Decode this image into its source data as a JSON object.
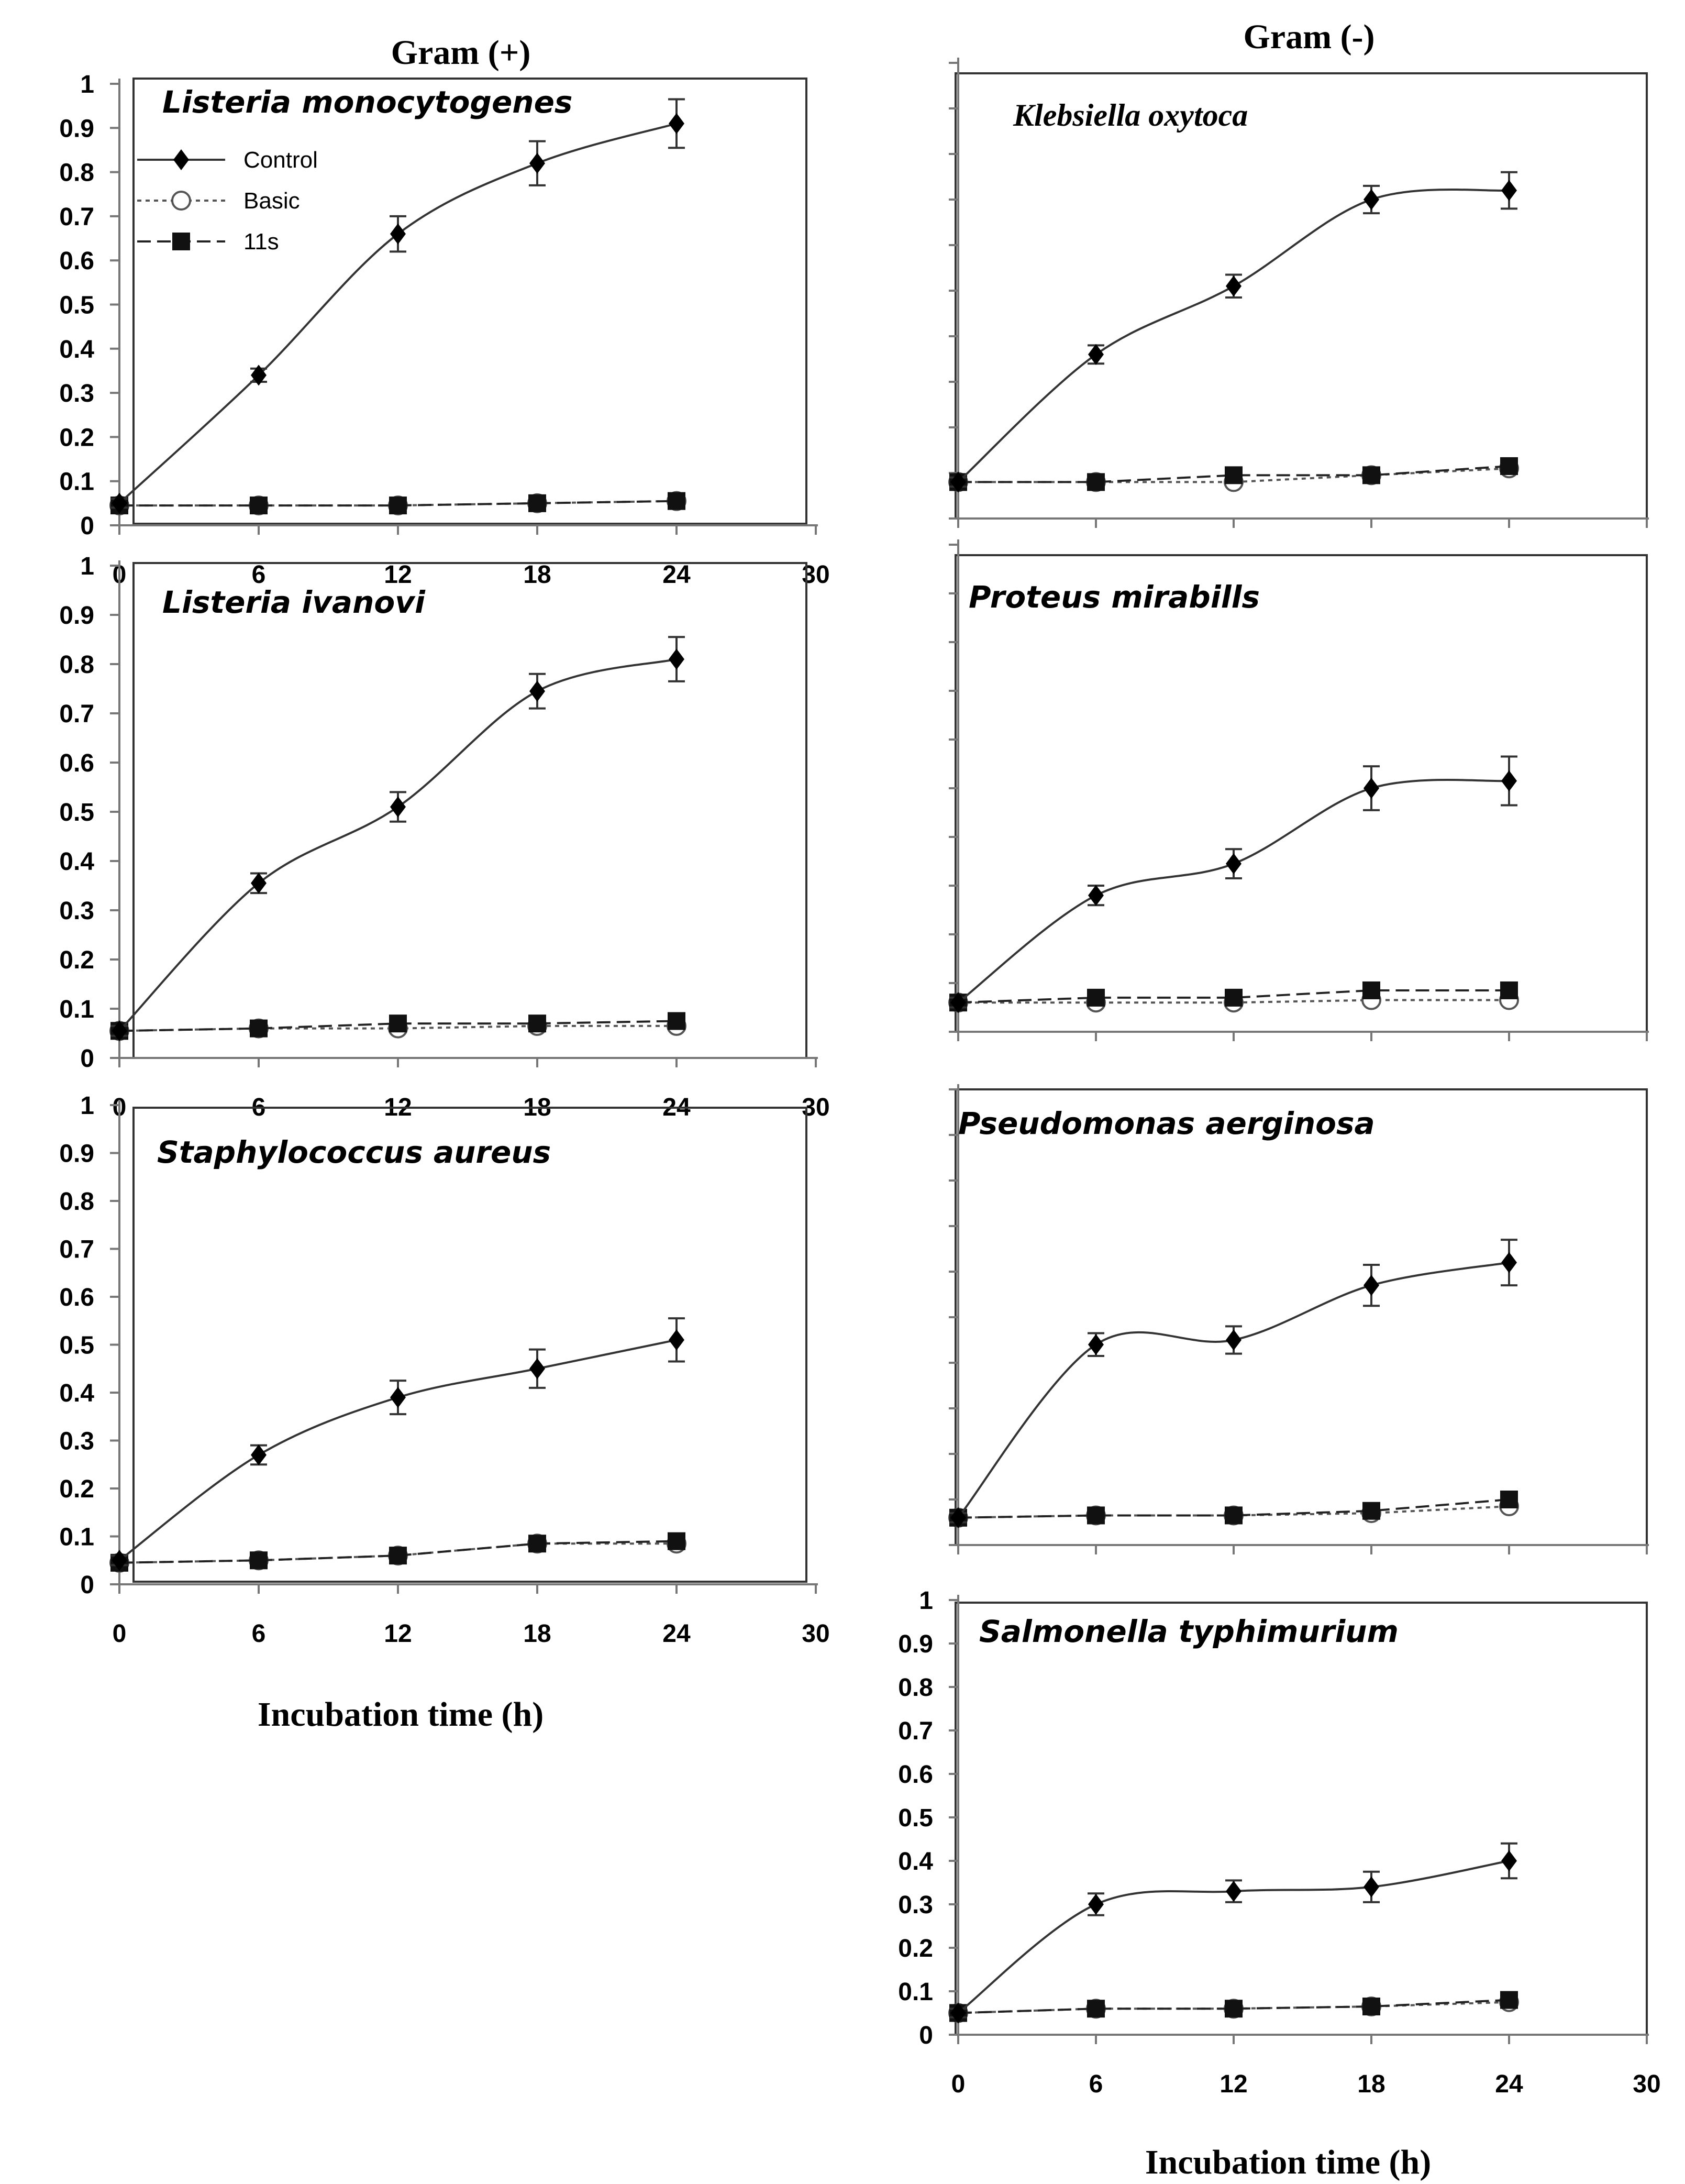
{
  "figure": {
    "gram_positive_label": "Gram (+)",
    "gram_negative_label": "Gram (-)",
    "x_axis_title": "Incubation time (h)",
    "legend": [
      {
        "name": "Control",
        "marker": "diamond-filled",
        "line": "solid"
      },
      {
        "name": "Basic",
        "marker": "circle-open",
        "line": "dotted"
      },
      {
        "name": "11s",
        "marker": "square-filled",
        "line": "dashed"
      }
    ]
  },
  "chart_data": [
    {
      "type": "line",
      "title": "Listeria monocytogenes",
      "column": "Gram (+)",
      "x": [
        0,
        6,
        12,
        18,
        24
      ],
      "xlim": [
        0,
        30
      ],
      "ylim": [
        0,
        1
      ],
      "xticks": [
        "0",
        "6",
        "12",
        "18",
        "24",
        "30"
      ],
      "yticks": [
        "0",
        "0.1",
        "0.2",
        "0.3",
        "0.4",
        "0.5",
        "0.6",
        "0.7",
        "0.8",
        "0.9",
        "1"
      ],
      "series": [
        {
          "name": "Control",
          "values": [
            0.05,
            0.34,
            0.66,
            0.82,
            0.91
          ],
          "errors": [
            0.01,
            0.015,
            0.04,
            0.05,
            0.055
          ]
        },
        {
          "name": "Basic",
          "values": [
            0.045,
            0.045,
            0.045,
            0.05,
            0.055
          ]
        },
        {
          "name": "11s",
          "values": [
            0.045,
            0.045,
            0.045,
            0.05,
            0.055
          ]
        }
      ]
    },
    {
      "type": "line",
      "title": "Listeria  ivanovi",
      "column": "Gram (+)",
      "x": [
        0,
        6,
        12,
        18,
        24
      ],
      "xlim": [
        0,
        30
      ],
      "ylim": [
        0,
        1
      ],
      "xticks": [
        "0",
        "6",
        "12",
        "18",
        "24",
        "30"
      ],
      "yticks": [
        "0",
        "0.1",
        "0.2",
        "0.3",
        "0.4",
        "0.5",
        "0.6",
        "0.7",
        "0.8",
        "0.9",
        "1"
      ],
      "series": [
        {
          "name": "Control",
          "values": [
            0.055,
            0.355,
            0.51,
            0.745,
            0.81
          ],
          "errors": [
            0.01,
            0.02,
            0.03,
            0.035,
            0.045
          ]
        },
        {
          "name": "Basic",
          "values": [
            0.055,
            0.06,
            0.06,
            0.065,
            0.065
          ]
        },
        {
          "name": "11s",
          "values": [
            0.055,
            0.06,
            0.07,
            0.07,
            0.075
          ]
        }
      ]
    },
    {
      "type": "line",
      "title": "Staphylococcus aureus",
      "column": "Gram (+)",
      "x": [
        0,
        6,
        12,
        18,
        24
      ],
      "xlim": [
        0,
        30
      ],
      "ylim": [
        0,
        1
      ],
      "xticks": [
        "0",
        "6",
        "12",
        "18",
        "24",
        "30"
      ],
      "yticks": [
        "0",
        "0.1",
        "0.2",
        "0.3",
        "0.4",
        "0.5",
        "0.6",
        "0.7",
        "0.8",
        "0.9",
        "1"
      ],
      "series": [
        {
          "name": "Control",
          "values": [
            0.05,
            0.27,
            0.39,
            0.45,
            0.51
          ],
          "errors": [
            0.01,
            0.02,
            0.035,
            0.04,
            0.045
          ]
        },
        {
          "name": "Basic",
          "values": [
            0.045,
            0.05,
            0.06,
            0.085,
            0.085
          ]
        },
        {
          "name": "11s",
          "values": [
            0.045,
            0.05,
            0.06,
            0.085,
            0.09
          ]
        }
      ]
    },
    {
      "type": "line",
      "title": "Klebsiella  oxytoca",
      "column": "Gram (-)",
      "x": [
        0,
        6,
        12,
        18,
        24
      ],
      "xlim": [
        0,
        30
      ],
      "ylim": [
        0,
        1
      ],
      "xticks": [],
      "yticks": [],
      "series": [
        {
          "name": "Control",
          "values": [
            0.08,
            0.36,
            0.51,
            0.7,
            0.72
          ],
          "errors": [
            0.01,
            0.02,
            0.025,
            0.03,
            0.04
          ]
        },
        {
          "name": "Basic",
          "values": [
            0.08,
            0.08,
            0.08,
            0.095,
            0.11
          ]
        },
        {
          "name": "11s",
          "values": [
            0.08,
            0.08,
            0.095,
            0.095,
            0.115
          ]
        }
      ]
    },
    {
      "type": "line",
      "title": "Proteus mirabills",
      "column": "Gram (-)",
      "x": [
        0,
        6,
        12,
        18,
        24
      ],
      "xlim": [
        0,
        30
      ],
      "ylim": [
        0,
        1
      ],
      "xticks": [],
      "yticks": [],
      "series": [
        {
          "name": "Control",
          "values": [
            0.06,
            0.28,
            0.345,
            0.5,
            0.515
          ],
          "errors": [
            0.01,
            0.02,
            0.03,
            0.045,
            0.05
          ]
        },
        {
          "name": "Basic",
          "values": [
            0.06,
            0.06,
            0.06,
            0.065,
            0.065
          ]
        },
        {
          "name": "11s",
          "values": [
            0.06,
            0.07,
            0.07,
            0.085,
            0.085
          ]
        }
      ]
    },
    {
      "type": "line",
      "title": "Pseudomonas aerginosa",
      "column": "Gram (-)",
      "x": [
        0,
        6,
        12,
        18,
        24
      ],
      "xlim": [
        0,
        30
      ],
      "ylim": [
        0,
        1
      ],
      "xticks": [],
      "yticks": [],
      "series": [
        {
          "name": "Control",
          "values": [
            0.06,
            0.44,
            0.45,
            0.57,
            0.62
          ],
          "errors": [
            0.01,
            0.025,
            0.03,
            0.045,
            0.05
          ]
        },
        {
          "name": "Basic",
          "values": [
            0.06,
            0.065,
            0.065,
            0.07,
            0.085
          ]
        },
        {
          "name": "11s",
          "values": [
            0.06,
            0.065,
            0.065,
            0.075,
            0.1
          ]
        }
      ]
    },
    {
      "type": "line",
      "title": "Salmonella typhimurium",
      "column": "Gram (-)",
      "x": [
        0,
        6,
        12,
        18,
        24
      ],
      "xlim": [
        0,
        30
      ],
      "ylim": [
        0,
        1
      ],
      "xticks": [
        "0",
        "6",
        "12",
        "18",
        "24",
        "30"
      ],
      "yticks": [
        "0",
        "0.1",
        "0.2",
        "0.3",
        "0.4",
        "0.5",
        "0.6",
        "0.7",
        "0.8",
        "0.9",
        "1"
      ],
      "series": [
        {
          "name": "Control",
          "values": [
            0.05,
            0.3,
            0.33,
            0.34,
            0.4
          ],
          "errors": [
            0.01,
            0.025,
            0.025,
            0.035,
            0.04
          ]
        },
        {
          "name": "Basic",
          "values": [
            0.05,
            0.06,
            0.06,
            0.065,
            0.075
          ]
        },
        {
          "name": "11s",
          "values": [
            0.05,
            0.06,
            0.06,
            0.065,
            0.08
          ]
        }
      ]
    }
  ]
}
